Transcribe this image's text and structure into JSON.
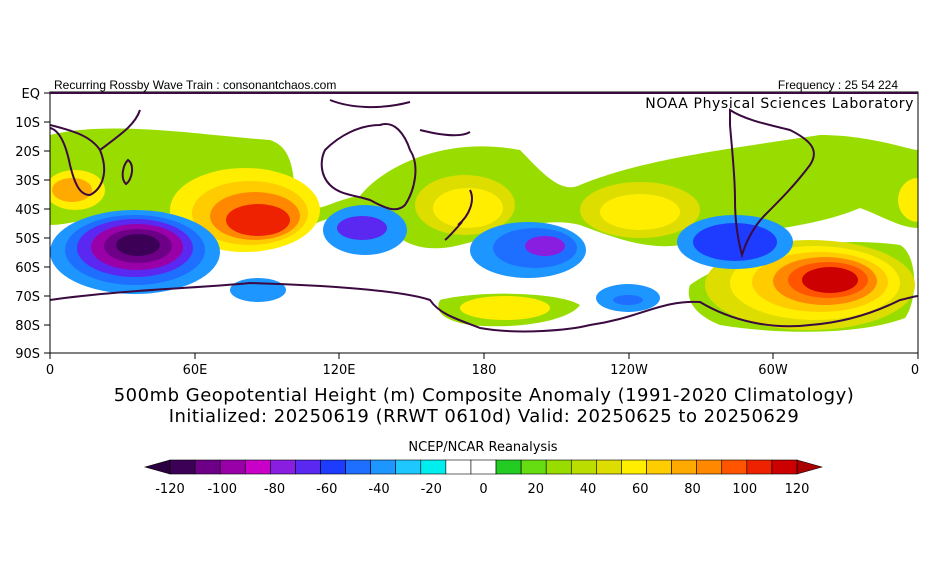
{
  "header": {
    "left": "Recurring Rossby Wave Train : consonantchaos.com",
    "right": "Frequency : 25 54 224"
  },
  "credit": "NOAA Physical Sciences Laboratory",
  "title_line1": "500mb Geopotential Height (m) Composite Anomaly (1991-2020 Climatology)",
  "title_line2": "Initialized: 20250619 (RRWT 0610d) Valid: 20250625 to 20250629",
  "colorbar": {
    "title": "NCEP/NCAR Reanalysis",
    "labels": [
      "-120",
      "-100",
      "-80",
      "-60",
      "-40",
      "-20",
      "0",
      "20",
      "40",
      "60",
      "80",
      "100",
      "120"
    ],
    "colors": [
      "#3d0057",
      "#6e0088",
      "#9a00a8",
      "#c800c8",
      "#8a1ee0",
      "#5a28f0",
      "#1e3cff",
      "#1e6eff",
      "#1e96ff",
      "#1ec8ff",
      "#00eeee",
      "#ffffff",
      "#ffffff",
      "#22cc22",
      "#66dd11",
      "#99dd00",
      "#bbdd00",
      "#dddd00",
      "#ffee00",
      "#ffcc00",
      "#ffaa00",
      "#ff8800",
      "#ff5500",
      "#ee2200",
      "#cc0000"
    ],
    "end_low": "#2a0040",
    "end_high": "#aa0000"
  },
  "map": {
    "lat_labels": [
      "EQ",
      "10S",
      "20S",
      "30S",
      "40S",
      "50S",
      "60S",
      "70S",
      "80S",
      "90S"
    ],
    "lon_labels": [
      "0",
      "60E",
      "120E",
      "180",
      "120W",
      "60W",
      "0"
    ]
  }
}
